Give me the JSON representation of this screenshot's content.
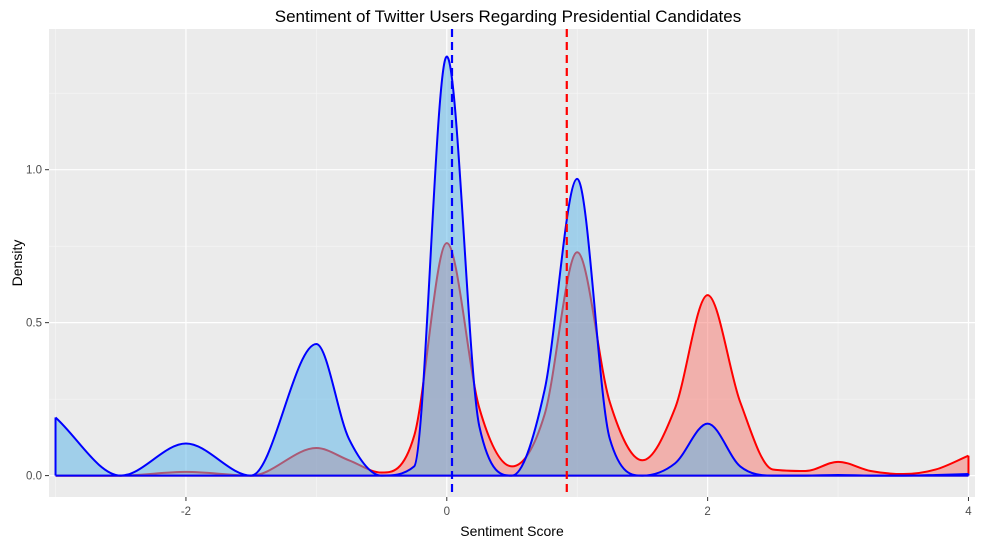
{
  "chart_data": {
    "type": "area",
    "title": "Sentiment of Twitter Users Regarding Presidential Candidates",
    "xlabel": "Sentiment Score",
    "ylabel": "Density",
    "xlim": [
      -3.05,
      4.05
    ],
    "ylim": [
      -0.07,
      1.46
    ],
    "x_ticks": [
      -2,
      0,
      2,
      4
    ],
    "x_tick_labels": [
      "-2",
      "0",
      "2",
      "4"
    ],
    "y_ticks": [
      0.0,
      0.5,
      1.0
    ],
    "y_tick_labels": [
      "0.0",
      "0.5",
      "1.0"
    ],
    "grid": true,
    "background": "#ebebeb",
    "series": [
      {
        "line_color": "#ff0000",
        "fill_color": "#f8766d",
        "mean": 0.92,
        "x": [
          -3.0,
          -2.5,
          -2.0,
          -1.5,
          -1.0,
          -0.75,
          -0.5,
          -0.25,
          0.0,
          0.25,
          0.5,
          0.75,
          1.0,
          1.25,
          1.5,
          1.75,
          2.0,
          2.25,
          2.5,
          2.75,
          3.0,
          3.25,
          3.5,
          3.75,
          4.0
        ],
        "y": [
          0.0,
          0.0,
          0.012,
          0.0,
          0.09,
          0.05,
          0.01,
          0.13,
          0.76,
          0.22,
          0.03,
          0.2,
          0.73,
          0.24,
          0.05,
          0.22,
          0.59,
          0.24,
          0.02,
          0.015,
          0.045,
          0.015,
          0.005,
          0.02,
          0.065
        ]
      },
      {
        "line_color": "#0000ff",
        "fill_color": "#56b4e9",
        "mean": 0.04,
        "x": [
          -3.0,
          -2.5,
          -2.0,
          -1.5,
          -1.0,
          -0.75,
          -0.5,
          -0.25,
          0.0,
          0.25,
          0.5,
          0.75,
          1.0,
          1.25,
          1.5,
          1.75,
          2.0,
          2.25,
          2.5,
          2.75,
          3.0,
          3.25,
          3.5,
          3.75,
          4.0
        ],
        "y": [
          0.19,
          0.0,
          0.105,
          0.0,
          0.43,
          0.12,
          0.0,
          0.03,
          1.37,
          0.16,
          0.0,
          0.28,
          0.97,
          0.12,
          0.0,
          0.04,
          0.17,
          0.03,
          0.0,
          0.0,
          0.002,
          0.0,
          0.0,
          0.002,
          0.005
        ]
      }
    ]
  }
}
